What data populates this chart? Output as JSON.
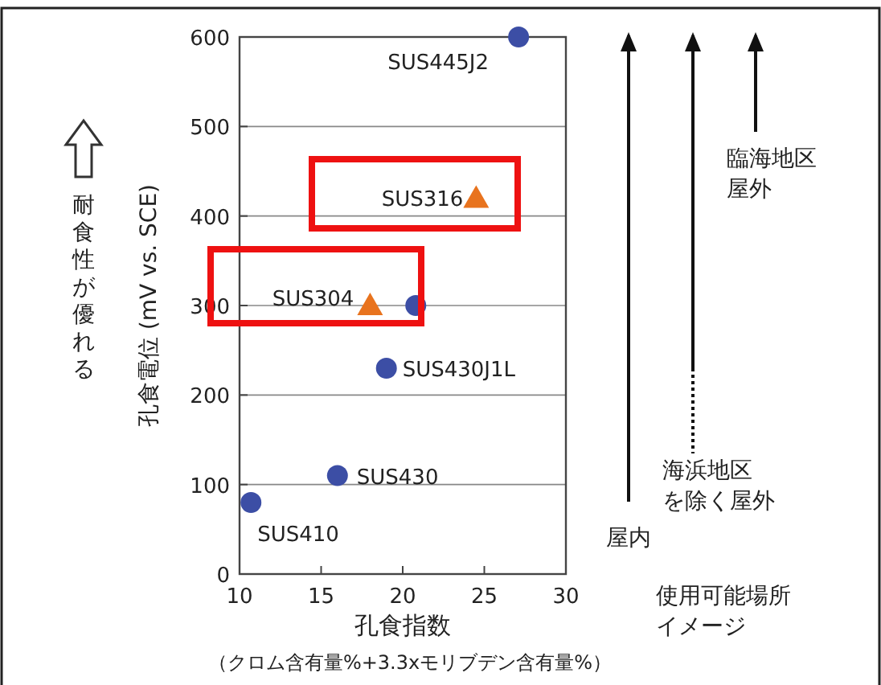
{
  "chart_data": {
    "type": "scatter",
    "xlabel": "孔食指数",
    "ylabel": "孔食電位 (mV vs. SCE)",
    "xlim": [
      10,
      30
    ],
    "xticks": [
      10,
      15,
      20,
      25,
      30
    ],
    "ylim": [
      0,
      600
    ],
    "yticks": [
      0,
      100,
      200,
      300,
      400,
      500,
      600
    ],
    "grid": "y",
    "series": [
      {
        "color": "#3c4ea5",
        "marker": "circle",
        "x": [
          10.7,
          16,
          19,
          20.8,
          27.1
        ],
        "values": [
          80,
          110,
          230,
          300,
          600
        ]
      },
      {
        "color": "#e8731e",
        "marker": "triangle",
        "x": [
          18,
          24.5
        ],
        "values": [
          300,
          420
        ]
      }
    ],
    "annotations": [
      {
        "text": "SUS445J2",
        "x": 27.1,
        "y": 600
      },
      {
        "text": "SUS316",
        "x": 24.5,
        "y": 420
      },
      {
        "text": "SUS304",
        "x": 18,
        "y": 300
      },
      {
        "text": "SUS430J1L",
        "x": 19,
        "y": 230
      },
      {
        "text": "SUS430",
        "x": 16,
        "y": 110
      },
      {
        "text": "SUS410",
        "x": 10.7,
        "y": 80
      },
      "（クロム含有量%+3.3xモリブデン含有量%）",
      "耐食性が優れる",
      "臨海地区屋外",
      "海浜地区を除く屋外",
      "屋内",
      "使用可能場所イメージ"
    ]
  }
}
